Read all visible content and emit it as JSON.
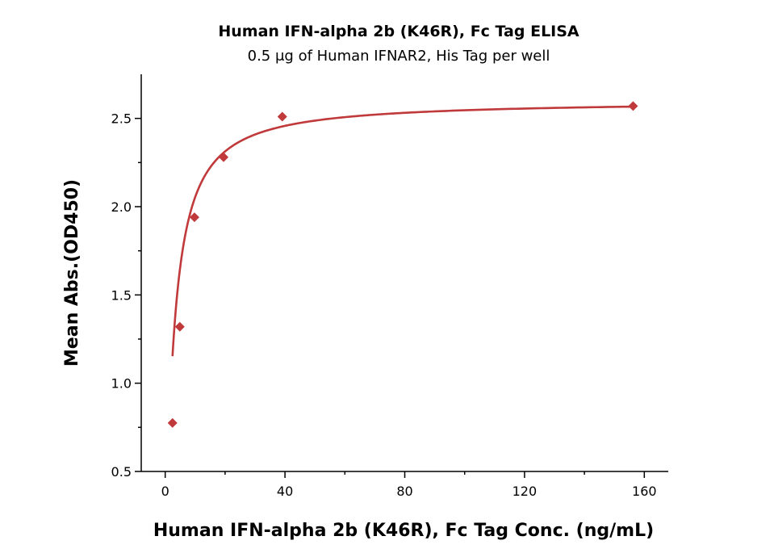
{
  "chart_data": {
    "type": "scatter",
    "title": "Human IFN-alpha 2b (K46R), Fc Tag ELISA",
    "subtitle": "0.5 μg of Human IFNAR2, His Tag per well",
    "xlabel": "Human IFN-alpha 2b (K46R), Fc Tag Conc. (ng/mL)",
    "ylabel": "Mean Abs.(OD450)",
    "xlim": [
      -8,
      168
    ],
    "ylim": [
      0.5,
      2.75
    ],
    "xticks": [
      0,
      40,
      80,
      120,
      160
    ],
    "xtick_labels": [
      "0",
      "40",
      "80",
      "120",
      "160"
    ],
    "yticks": [
      0.5,
      1.0,
      1.5,
      2.0,
      2.5
    ],
    "ytick_labels": [
      "0.5",
      "1.0",
      "1.5",
      "2.0",
      "2.5"
    ],
    "grid": false,
    "series": [
      {
        "color": "#c0393b",
        "marker": "diamond",
        "points": [
          {
            "x": 2.44,
            "y": 0.775
          },
          {
            "x": 4.88,
            "y": 1.32
          },
          {
            "x": 9.77,
            "y": 1.94
          },
          {
            "x": 19.5,
            "y": 2.28
          },
          {
            "x": 39.1,
            "y": 2.51
          },
          {
            "x": 156.25,
            "y": 2.57
          }
        ],
        "fit": {
          "type": "4PL",
          "bottom": 0.0,
          "top": 2.6,
          "ec50": 3.0,
          "hill": 1.1
        }
      }
    ]
  }
}
